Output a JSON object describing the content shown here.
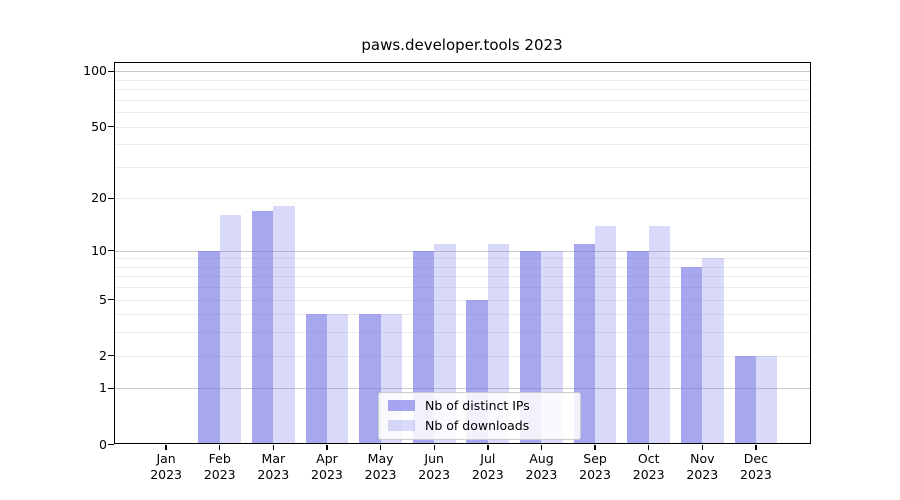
{
  "title": "paws.developer.tools 2023",
  "chart_data": {
    "type": "bar",
    "title": "paws.developer.tools 2023",
    "categories": [
      "Jan",
      "Feb",
      "Mar",
      "Apr",
      "May",
      "Jun",
      "Jul",
      "Aug",
      "Sep",
      "Oct",
      "Nov",
      "Dec"
    ],
    "year_label": "2023",
    "series": [
      {
        "name": "Nb of distinct IPs",
        "values": [
          0,
          10,
          17,
          4,
          4,
          10,
          5,
          10,
          11,
          10,
          8,
          2
        ],
        "color": "rgba(120,120,232,0.65)",
        "rendered_color": "#a8a8f0"
      },
      {
        "name": "Nb of downloads",
        "values": [
          0,
          16,
          18,
          4,
          4,
          11,
          11,
          10,
          14,
          14,
          9,
          2
        ],
        "color": "rgba(120,120,232,0.28)",
        "rendered_color": "#d9d9f8"
      }
    ],
    "y_axis": {
      "scale": "log10(value+1)",
      "tick_values": [
        0,
        1,
        2,
        5,
        10,
        20,
        50,
        100
      ],
      "major_grid_values": [
        1,
        10,
        100
      ],
      "minor_grid_values": [
        2,
        3,
        4,
        5,
        6,
        7,
        8,
        9,
        20,
        30,
        40,
        50,
        60,
        70,
        80,
        90
      ],
      "range": [
        0,
        110
      ]
    },
    "legend": {
      "position": "lower center",
      "entries": [
        "Nb of distinct IPs",
        "Nb of downloads"
      ]
    },
    "grid": true
  },
  "colors": {
    "background": "#ffffff",
    "spine": "#000000",
    "grid_major": "#c9c9c9",
    "grid_minor": "#ececec",
    "bar_distinct_ips": "#a8a8f0",
    "bar_downloads": "#d9d9f8",
    "text": "#000000"
  }
}
